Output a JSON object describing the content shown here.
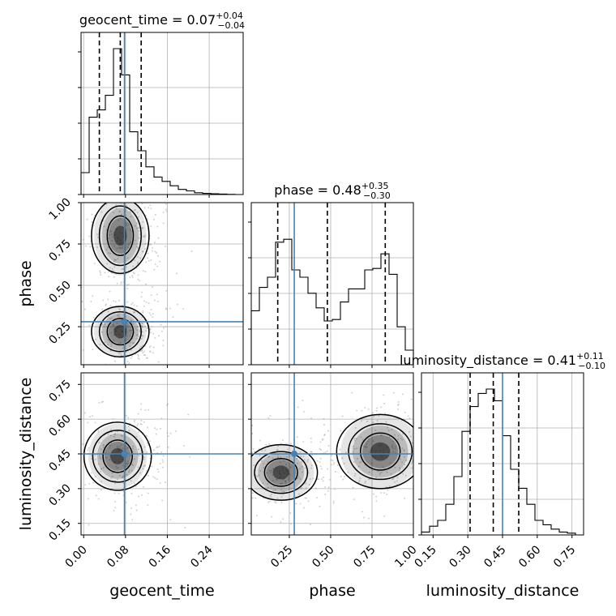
{
  "chart_data": {
    "type": "corner",
    "parameters": [
      "geocent_time",
      "phase",
      "luminosity_distance"
    ],
    "axis_labels": {
      "geocent_time": "geocent_time",
      "phase": "phase",
      "luminosity_distance": "luminosity_distance"
    },
    "ranges": {
      "geocent_time": [
        -0.005,
        0.305
      ],
      "phase": [
        0.02,
        1.0
      ],
      "luminosity_distance": [
        0.1,
        0.8
      ]
    },
    "ticks": {
      "geocent_time": {
        "values": [
          0.0,
          0.08,
          0.16,
          0.24
        ],
        "labels": [
          "0.00",
          "0.08",
          "0.16",
          "0.24"
        ]
      },
      "phase": {
        "values": [
          0.25,
          0.5,
          0.75,
          1.0
        ],
        "labels": [
          "0.25",
          "0.50",
          "0.75",
          "1.00"
        ]
      },
      "luminosity_distance": {
        "values": [
          0.15,
          0.3,
          0.45,
          0.6,
          0.75
        ],
        "labels": [
          "0.15",
          "0.30",
          "0.45",
          "0.60",
          "0.75"
        ]
      }
    },
    "titles": [
      {
        "param": "geocent_time",
        "label": "geocent_time",
        "median": "0.07",
        "plus": "+0.04",
        "minus": "−0.04"
      },
      {
        "param": "phase",
        "label": "phase",
        "median": "0.48",
        "plus": "+0.35",
        "minus": "−0.30"
      },
      {
        "param": "luminosity_distance",
        "label": "luminosity_distance",
        "median": "0.41",
        "plus": "+0.11",
        "minus": "−0.10"
      }
    ],
    "quantiles": {
      "geocent_time": [
        0.03,
        0.07,
        0.11
      ],
      "phase": [
        0.18,
        0.48,
        0.83
      ],
      "luminosity_distance": [
        0.31,
        0.41,
        0.52
      ]
    },
    "truths": {
      "geocent_time": 0.078,
      "phase": 0.28,
      "luminosity_distance": 0.45
    },
    "histograms": {
      "geocent_time": {
        "edges": [
          -0.005,
          0.0105,
          0.026,
          0.0415,
          0.057,
          0.0725,
          0.088,
          0.1035,
          0.119,
          0.1345,
          0.15,
          0.1655,
          0.181,
          0.1965,
          0.212,
          0.2275,
          0.243,
          0.2585,
          0.274,
          0.2895,
          0.305
        ],
        "counts": [
          0.15,
          0.53,
          0.58,
          0.68,
          1.0,
          0.82,
          0.43,
          0.3,
          0.19,
          0.12,
          0.09,
          0.06,
          0.035,
          0.025,
          0.012,
          0.008,
          0.005,
          0.003,
          0.001,
          0.0
        ]
      },
      "phase": {
        "edges": [
          0.02,
          0.069,
          0.118,
          0.167,
          0.216,
          0.265,
          0.314,
          0.363,
          0.412,
          0.461,
          0.51,
          0.559,
          0.608,
          0.657,
          0.706,
          0.755,
          0.804,
          0.853,
          0.902,
          0.951,
          1.0
        ],
        "counts": [
          0.37,
          0.53,
          0.6,
          0.84,
          0.86,
          0.65,
          0.6,
          0.49,
          0.39,
          0.3,
          0.31,
          0.43,
          0.52,
          0.52,
          0.65,
          0.66,
          0.76,
          0.62,
          0.26,
          0.1
        ]
      },
      "luminosity_distance": {
        "edges": [
          0.1,
          0.135,
          0.17,
          0.205,
          0.24,
          0.275,
          0.31,
          0.345,
          0.38,
          0.415,
          0.45,
          0.485,
          0.52,
          0.555,
          0.59,
          0.625,
          0.66,
          0.695,
          0.73,
          0.765,
          0.8
        ],
        "counts": [
          0.02,
          0.06,
          0.1,
          0.21,
          0.4,
          0.71,
          0.88,
          0.97,
          1.0,
          0.92,
          0.68,
          0.45,
          0.32,
          0.21,
          0.1,
          0.07,
          0.04,
          0.02,
          0.012,
          0.0
        ]
      }
    },
    "density_modes": [
      {
        "x": "geocent_time",
        "y": "phase",
        "peaks": [
          {
            "x": 0.07,
            "y": 0.81
          },
          {
            "x": 0.07,
            "y": 0.2
          }
        ]
      },
      {
        "x": "geocent_time",
        "y": "luminosity_distance",
        "peaks": [
          {
            "x": 0.065,
            "y": 0.43
          }
        ]
      },
      {
        "x": "phase",
        "y": "luminosity_distance",
        "peaks": [
          {
            "x": 0.2,
            "y": 0.36
          },
          {
            "x": 0.82,
            "y": 0.44
          }
        ]
      }
    ],
    "grid": true,
    "legend": "none"
  }
}
